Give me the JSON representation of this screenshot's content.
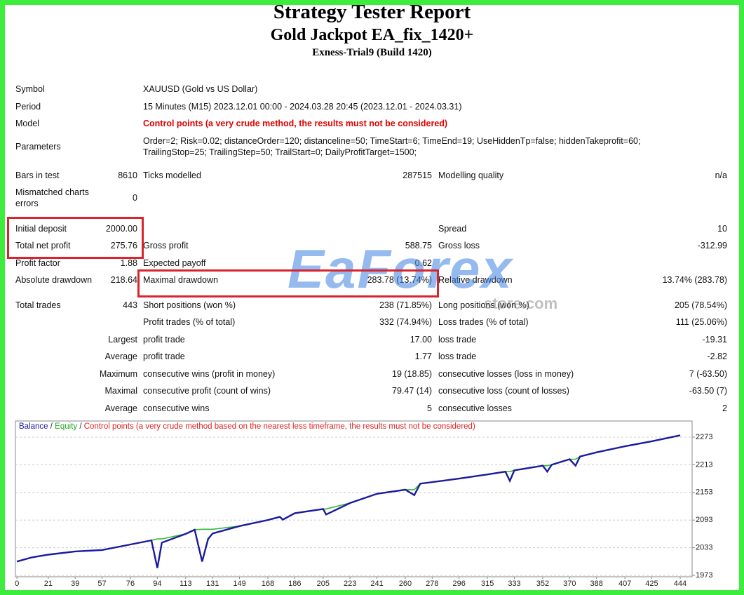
{
  "header": {
    "title": "Strategy Tester Report",
    "subtitle": "Gold Jackpot EA_fix_1420+",
    "server": "Exness-Trial9 (Build 1420)"
  },
  "info": [
    {
      "label": "Symbol",
      "text": "XAUUSD (Gold vs US Dollar)"
    },
    {
      "label": "Period",
      "text": "15 Minutes (M15) 2023.12.01 00:00 - 2024.03.28 20:45 (2023.12.01 - 2024.03.31)"
    },
    {
      "label": "Model",
      "text": "Control points (a very crude method, the results must not be considered)",
      "color": "#e00000"
    },
    {
      "label": "Parameters",
      "text": "Order=2; Risk=0.02; distanceOrder=120; distanceline=50; TimeStart=6; TimeEnd=19; UseHiddenTp=false; hiddenTakeprofit=60; TrailingStop=25; TrailingStep=50; TrailStart=0; DailyProfitTarget=1500;"
    }
  ],
  "stats": [
    {
      "label1": "Bars in test",
      "value1": "8610",
      "label2": "Ticks modelled",
      "value2": "287515",
      "label3": "Modelling quality",
      "value3": "n/a"
    },
    {
      "label1": "Mismatched charts errors",
      "value1": "0"
    },
    {
      "label1": "Initial deposit",
      "value1": "2000.00",
      "label3": "Spread",
      "value3": "10"
    },
    {
      "label1": "Total net profit",
      "value1": "275.76",
      "label2": "Gross profit",
      "value2": "588.75",
      "label3": "Gross loss",
      "value3": "-312.99"
    },
    {
      "label1": "Profit factor",
      "value1": "1.88",
      "label2": "Expected payoff",
      "value2": "0.62"
    },
    {
      "label1": "Absolute drawdown",
      "value1": "218.64",
      "label2": "Maximal drawdown",
      "value2": "283.78 (13.74%)",
      "label3": "Relative drawdown",
      "value3": "13.74% (283.78)"
    },
    {
      "label1": "Total trades",
      "value1": "443",
      "label2": "Short positions (won %)",
      "value2": "238 (71.85%)",
      "label3": "Long positions (won %)",
      "value3": "205 (78.54%)"
    },
    {
      "label2": "Profit trades (% of total)",
      "value2": "332 (74.94%)",
      "label3": "Loss trades (% of total)",
      "value3": "111 (25.06%)"
    },
    {
      "label1": "Largest",
      "label2": "profit trade",
      "value2": "17.00",
      "label3": "loss trade",
      "value3": "-19.31"
    },
    {
      "label1": "Average",
      "label2": "profit trade",
      "value2": "1.77",
      "label3": "loss trade",
      "value3": "-2.82"
    },
    {
      "label1": "Maximum",
      "label2": "consecutive wins (profit in money)",
      "value2": "19 (18.85)",
      "label3": "consecutive losses (loss in money)",
      "value3": "7 (-63.50)"
    },
    {
      "label1": "Maximal",
      "label2": "consecutive profit (count of wins)",
      "value2": "79.47 (14)",
      "label3": "consecutive loss (count of losses)",
      "value3": "-63.50 (7)"
    },
    {
      "label1": "Average",
      "label2": "consecutive wins",
      "value2": "5",
      "label3": "consecutive losses",
      "value3": "2"
    }
  ],
  "watermark": {
    "brand": "EaForex",
    "site": "store.com"
  },
  "chart_data": {
    "type": "line",
    "legend_separator": "/",
    "note": "Control points (a very crude method based on the nearest less timeframe, the results must not be considered)",
    "x": [
      0,
      10,
      21,
      39,
      57,
      76,
      90,
      94,
      97,
      113,
      119,
      124,
      128,
      131,
      149,
      168,
      176,
      178,
      186,
      205,
      207,
      223,
      241,
      260,
      266,
      270,
      296,
      315,
      327,
      330,
      333,
      352,
      355,
      358,
      370,
      374,
      377,
      388,
      407,
      425,
      444
    ],
    "series": [
      {
        "name": "Equity",
        "color": "#33bb33",
        "values": [
          2003,
          2012,
          2018,
          2025,
          2028,
          2040,
          2049,
          2052,
          2052,
          2063,
          2072,
          2073,
          2073,
          2073,
          2080,
          2093,
          2100,
          2094,
          2108,
          2117,
          2117,
          2130,
          2150,
          2159,
          2159,
          2172,
          2183,
          2192,
          2198,
          2198,
          2201,
          2211,
          2211,
          2213,
          2225,
          2225,
          2231,
          2240,
          2253,
          2264,
          2277
        ]
      },
      {
        "name": "Balance",
        "color": "#1a1aa0",
        "values": [
          2003,
          2012,
          2018,
          2025,
          2028,
          2040,
          2049,
          1989,
          2044,
          2063,
          2072,
          2003,
          2052,
          2064,
          2080,
          2093,
          2100,
          2094,
          2108,
          2117,
          2105,
          2130,
          2150,
          2159,
          2147,
          2172,
          2183,
          2192,
          2198,
          2178,
          2201,
          2211,
          2198,
          2213,
          2225,
          2211,
          2231,
          2240,
          2253,
          2264,
          2277
        ]
      }
    ],
    "xlim": [
      -1,
      452
    ],
    "ylim": [
      1970,
      2308
    ],
    "xticks": [
      0,
      21,
      39,
      57,
      76,
      94,
      113,
      131,
      149,
      168,
      186,
      205,
      223,
      241,
      260,
      278,
      296,
      315,
      333,
      352,
      370,
      388,
      407,
      425,
      444
    ],
    "yticks": [
      1973,
      2033,
      2093,
      2153,
      2213,
      2273
    ],
    "grid": true
  }
}
